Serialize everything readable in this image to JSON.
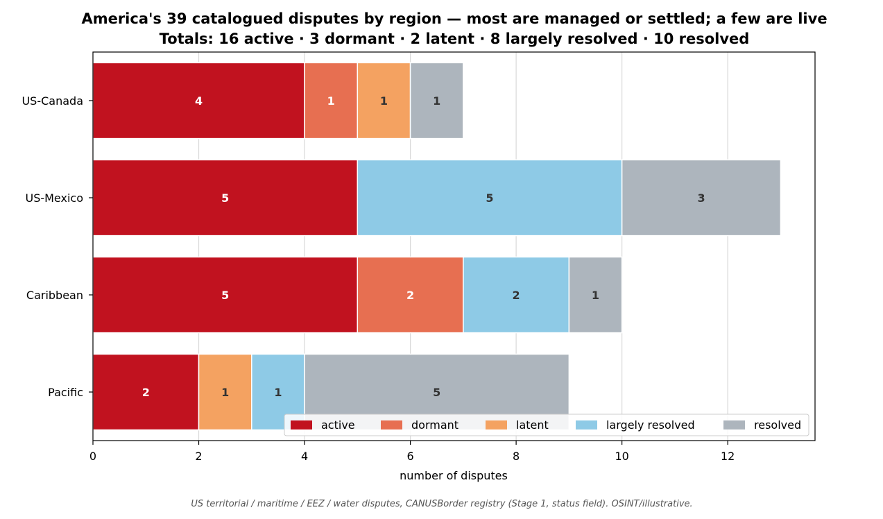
{
  "chart_data": {
    "type": "bar",
    "orientation": "horizontal",
    "stacked": true,
    "title": "America's 39 catalogued disputes by region — most are managed or settled; a few are live",
    "subtitle": "Totals: 16 active · 3 dormant · 2 latent · 8 largely resolved · 10 resolved",
    "xlabel": "number of disputes",
    "ylabel": "",
    "xlim": [
      0,
      13.65
    ],
    "xticks": [
      0,
      2,
      4,
      6,
      8,
      10,
      12
    ],
    "grid": "vertical",
    "legend_position": "lower-right",
    "categories": [
      "US-Canada",
      "US-Mexico",
      "Caribbean",
      "Pacific"
    ],
    "series": [
      {
        "name": "active",
        "color": "#c1121f",
        "label_color": "#ffffff",
        "values": [
          4,
          5,
          5,
          2
        ]
      },
      {
        "name": "dormant",
        "color": "#e76f51",
        "label_color": "#ffffff",
        "values": [
          1,
          0,
          2,
          0
        ]
      },
      {
        "name": "latent",
        "color": "#f4a261",
        "label_color": "#333333",
        "values": [
          1,
          0,
          0,
          1
        ]
      },
      {
        "name": "largely resolved",
        "color": "#8ecae6",
        "label_color": "#333333",
        "values": [
          0,
          5,
          2,
          1
        ]
      },
      {
        "name": "resolved",
        "color": "#adb5bd",
        "label_color": "#333333",
        "values": [
          1,
          3,
          1,
          5
        ]
      }
    ],
    "footnote": "US territorial / maritime / EEZ / water disputes, CANUSBorder registry (Stage 1, status field). OSINT/illustrative."
  }
}
